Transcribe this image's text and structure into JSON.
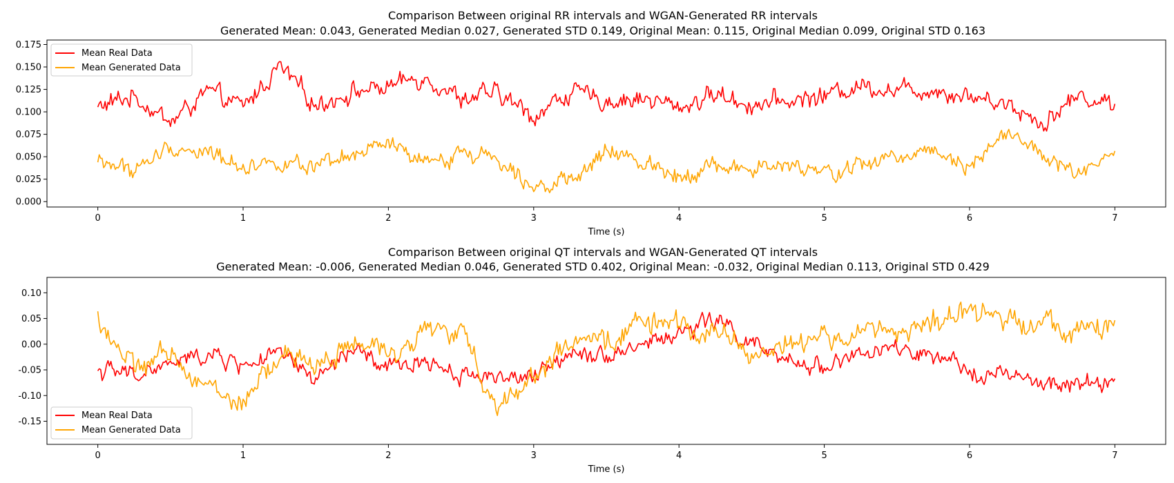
{
  "colors": {
    "real": "#ff0000",
    "generated": "#ffa500"
  },
  "chart_data": [
    {
      "type": "line",
      "title": "Comparison Between original RR intervals and WGAN-Generated RR intervals",
      "subtitle": "Generated Mean: 0.043, Generated Median 0.027, Generated STD 0.149, Original Mean: 0.115, Original Median 0.099, Original STD 0.163",
      "xlabel": "Time (s)",
      "ylabel": "",
      "xlim": [
        -0.35,
        7.35
      ],
      "ylim": [
        -0.006,
        0.18
      ],
      "xticks": [
        "0",
        "1",
        "2",
        "3",
        "4",
        "5",
        "6",
        "7"
      ],
      "yticks": [
        "0.000",
        "0.025",
        "0.050",
        "0.075",
        "0.100",
        "0.125",
        "0.150",
        "0.175"
      ],
      "legend": {
        "position": "top-left",
        "entries": [
          "Mean Real Data",
          "Mean Generated Data"
        ]
      },
      "grid": false,
      "series": [
        {
          "name": "Mean Real Data",
          "color": "#ff0000",
          "x": [
            0,
            0.25,
            0.5,
            0.75,
            1,
            1.25,
            1.5,
            1.75,
            2,
            2.25,
            2.5,
            2.75,
            3,
            3.25,
            3.5,
            3.75,
            4,
            4.25,
            4.5,
            4.75,
            5,
            5.25,
            5.5,
            5.75,
            6,
            6.25,
            6.5,
            6.75,
            7
          ],
          "values": [
            0.105,
            0.118,
            0.088,
            0.122,
            0.105,
            0.15,
            0.108,
            0.122,
            0.128,
            0.14,
            0.115,
            0.12,
            0.095,
            0.122,
            0.112,
            0.115,
            0.105,
            0.12,
            0.108,
            0.112,
            0.118,
            0.13,
            0.125,
            0.125,
            0.118,
            0.11,
            0.088,
            0.118,
            0.108
          ]
        },
        {
          "name": "Mean Generated Data",
          "color": "#ffa500",
          "x": [
            0,
            0.25,
            0.5,
            0.75,
            1,
            1.25,
            1.5,
            1.75,
            2,
            2.25,
            2.5,
            2.75,
            3,
            3.25,
            3.5,
            3.75,
            4,
            4.25,
            4.5,
            4.75,
            5,
            5.25,
            5.5,
            5.75,
            6,
            6.25,
            6.5,
            6.75,
            7
          ],
          "values": [
            0.045,
            0.035,
            0.06,
            0.055,
            0.04,
            0.045,
            0.035,
            0.05,
            0.065,
            0.04,
            0.055,
            0.05,
            0.02,
            0.02,
            0.055,
            0.045,
            0.03,
            0.04,
            0.035,
            0.04,
            0.03,
            0.04,
            0.05,
            0.06,
            0.04,
            0.08,
            0.05,
            0.03,
            0.05
          ]
        }
      ]
    },
    {
      "type": "line",
      "title": "Comparison Between original QT intervals and WGAN-Generated QT intervals",
      "subtitle": "Generated Mean: -0.006, Generated Median 0.046, Generated STD 0.402, Original Mean: -0.032, Original Median 0.113, Original STD 0.429",
      "xlabel": "Time (s)",
      "ylabel": "",
      "xlim": [
        -0.35,
        7.35
      ],
      "ylim": [
        -0.195,
        0.13
      ],
      "xticks": [
        "0",
        "1",
        "2",
        "3",
        "4",
        "5",
        "6",
        "7"
      ],
      "yticks": [
        "-0.15",
        "-0.10",
        "-0.05",
        "0.00",
        "0.05",
        "0.10"
      ],
      "legend": {
        "position": "bottom-left",
        "entries": [
          "Mean Real Data",
          "Mean Generated Data"
        ]
      },
      "grid": false,
      "series": [
        {
          "name": "Mean Real Data",
          "color": "#ff0000",
          "x": [
            0,
            0.25,
            0.5,
            0.75,
            1,
            1.25,
            1.5,
            1.75,
            2,
            2.25,
            2.5,
            2.75,
            3,
            3.25,
            3.5,
            3.75,
            4,
            4.25,
            4.5,
            4.75,
            5,
            5.25,
            5.5,
            5.75,
            6,
            6.25,
            6.5,
            6.75,
            7
          ],
          "values": [
            -0.05,
            -0.06,
            -0.04,
            -0.02,
            -0.04,
            -0.02,
            -0.07,
            -0.01,
            -0.05,
            -0.03,
            -0.06,
            -0.06,
            -0.07,
            -0.01,
            -0.02,
            0.0,
            0.02,
            0.05,
            0.0,
            -0.04,
            -0.04,
            -0.02,
            -0.01,
            -0.03,
            -0.05,
            -0.06,
            -0.08,
            -0.08,
            -0.07
          ]
        },
        {
          "name": "Mean Generated Data",
          "color": "#ffa500",
          "x": [
            0,
            0.25,
            0.5,
            0.75,
            1,
            1.25,
            1.5,
            1.75,
            2,
            2.25,
            2.5,
            2.75,
            3,
            3.25,
            3.5,
            3.75,
            4,
            4.25,
            4.5,
            4.75,
            5,
            5.25,
            5.5,
            5.75,
            6,
            6.25,
            6.5,
            6.75,
            7
          ],
          "values": [
            0.05,
            -0.05,
            -0.02,
            -0.08,
            -0.12,
            -0.02,
            -0.04,
            0.0,
            -0.02,
            0.03,
            0.02,
            -0.12,
            -0.06,
            0.0,
            0.0,
            0.05,
            0.03,
            0.03,
            -0.02,
            0.0,
            0.01,
            0.02,
            0.03,
            0.04,
            0.06,
            0.05,
            0.05,
            0.02,
            0.04
          ]
        }
      ]
    }
  ]
}
